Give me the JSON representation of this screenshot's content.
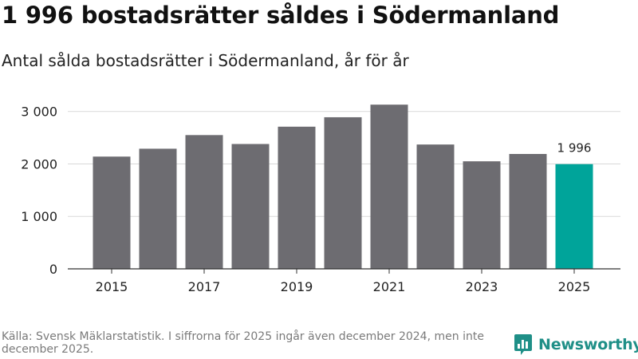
{
  "title": "1 996 bostadsrätter såldes i Södermanland",
  "subtitle": "Antal sålda bostadsrätter i Södermanland, år för år",
  "source": "Källa: Svensk Mäklarstatistik. I siffrorna för 2025 ingår även december 2024, men inte december 2025.",
  "brand": {
    "name": "Newsworthy",
    "icon": "newsworthy-logo-icon",
    "color": "#1f8f87"
  },
  "colors": {
    "bar": "#6d6c71",
    "highlight": "#00a49a",
    "grid": "#d9d9d9",
    "axis": "#333333"
  },
  "chart_data": {
    "type": "bar",
    "title": "Antal sålda bostadsrätter i Södermanland, år för år",
    "xlabel": "",
    "ylabel": "",
    "categories": [
      "2015",
      "2016",
      "2017",
      "2018",
      "2019",
      "2020",
      "2021",
      "2022",
      "2023",
      "2024",
      "2025"
    ],
    "values": [
      2140,
      2290,
      2550,
      2380,
      2710,
      2890,
      3130,
      2370,
      2050,
      2190,
      1996
    ],
    "highlight_index": 10,
    "data_labels": [
      {
        "index": 10,
        "text": "1 996"
      }
    ],
    "x_tick_labels": [
      "2015",
      "2017",
      "2019",
      "2021",
      "2023",
      "2025"
    ],
    "y_ticks": [
      0,
      1000,
      2000,
      3000
    ],
    "y_tick_labels": [
      "0",
      "1 000",
      "2 000",
      "3 000"
    ],
    "ylim": [
      0,
      3300
    ],
    "grid": true
  }
}
